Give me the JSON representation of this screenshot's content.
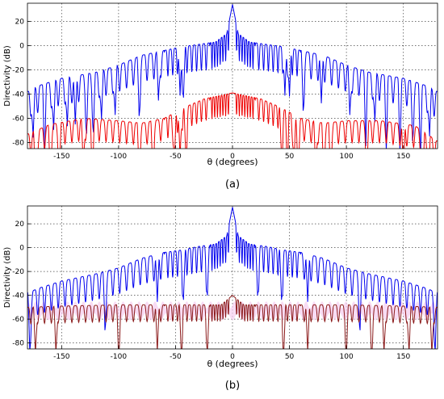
{
  "figure": {
    "panel_labels": [
      "(a)",
      "(b)"
    ]
  },
  "colors": {
    "upper": "#0000ee",
    "lower_a": "#ee0000",
    "lower_b": "#8b1a1a",
    "shade_b": "#f5cdf0"
  },
  "chart_data": [
    {
      "type": "line",
      "panel": "(a)",
      "xlabel": "θ (degrees)",
      "ylabel": "Directivity (dB)",
      "xlim": [
        -180,
        180
      ],
      "ylim": [
        -85,
        35
      ],
      "xticks": [
        -150,
        -100,
        -50,
        0,
        50,
        100,
        150
      ],
      "yticks": [
        -80,
        -60,
        -40,
        -20,
        0,
        20
      ],
      "grid": true,
      "series": [
        {
          "style": "blue",
          "x": [
            -180,
            -170,
            -150,
            -120,
            -100,
            -80,
            -60,
            -45,
            -30,
            -15,
            -5,
            0,
            5,
            15,
            30,
            45,
            60,
            80,
            100,
            120,
            150,
            170,
            180
          ],
          "y": [
            -38,
            -33,
            -27,
            -22,
            -16,
            -8,
            -4,
            -1,
            1,
            3,
            10,
            34,
            10,
            3,
            1,
            -1,
            -4,
            -8,
            -16,
            -22,
            -27,
            -33,
            -38
          ],
          "nulls": [
            -175,
            -165,
            -157,
            -145,
            -138,
            -128,
            -122,
            -115,
            -103,
            -82,
            -65,
            -46,
            -43,
            46,
            50,
            62,
            78,
            103,
            117,
            125,
            135,
            147,
            158,
            165,
            173
          ]
        },
        {
          "style": "red",
          "x": [
            -180,
            -160,
            -130,
            -100,
            -80,
            -60,
            -40,
            -25,
            -15,
            -5,
            0,
            5,
            15,
            25,
            40,
            60,
            80,
            100,
            130,
            160,
            180
          ],
          "y": [
            -73,
            -65,
            -60,
            -62,
            -64,
            -60,
            -50,
            -44,
            -42,
            -40,
            -39,
            -40,
            -42,
            -44,
            -50,
            -60,
            -64,
            -62,
            -62,
            -66,
            -79
          ],
          "nulls": [
            -173,
            -160,
            -152,
            -131,
            -123,
            -82,
            -70,
            -51,
            -46,
            -41,
            43,
            48,
            54,
            58,
            73,
            80,
            86,
            118,
            150,
            167,
            172
          ]
        }
      ]
    },
    {
      "type": "line",
      "panel": "(b)",
      "xlabel": "θ (degrees)",
      "ylabel": "Directivity (dB)",
      "xlim": [
        -180,
        180
      ],
      "ylim": [
        -85,
        35
      ],
      "xticks": [
        -150,
        -100,
        -50,
        0,
        50,
        100,
        150
      ],
      "yticks": [
        -80,
        -60,
        -40,
        -20,
        0,
        20
      ],
      "grid": true,
      "series": [
        {
          "style": "blue",
          "x": [
            -180,
            -170,
            -150,
            -120,
            -100,
            -80,
            -60,
            -45,
            -30,
            -15,
            -5,
            0,
            5,
            15,
            30,
            45,
            60,
            80,
            100,
            120,
            150,
            170,
            180
          ],
          "y": [
            -38,
            -34,
            -28,
            -22,
            -17,
            -9,
            -4,
            -2,
            1,
            3,
            10,
            34,
            10,
            3,
            1,
            -2,
            -4,
            -9,
            -17,
            -22,
            -28,
            -34,
            -38
          ],
          "nulls": [
            -178,
            -112,
            -66,
            -43,
            -22,
            22,
            43,
            66,
            112,
            178
          ]
        },
        {
          "style": "darkred",
          "x": [
            -180,
            -150,
            -100,
            -50,
            -10,
            0,
            10,
            50,
            100,
            150,
            180
          ],
          "y": [
            -50,
            -49,
            -48,
            -48,
            -48,
            -40,
            -48,
            -48,
            -48,
            -49,
            -50
          ],
          "nulls": [
            -173,
            -155,
            -100,
            -66,
            -45,
            -22,
            45,
            66,
            100,
            122,
            133,
            155,
            175
          ]
        }
      ]
    }
  ]
}
